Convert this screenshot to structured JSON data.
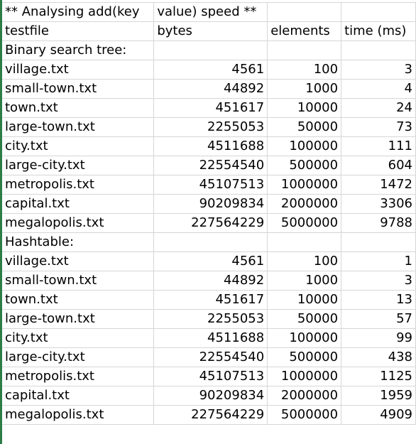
{
  "title_row": [
    "** Analysing add(key",
    "value) speed **",
    "",
    ""
  ],
  "header_row": [
    "testfile",
    "bytes",
    "elements",
    "time (ms)"
  ],
  "sections": [
    {
      "label": "Binary search tree:",
      "rows": [
        {
          "file": "village.txt",
          "bytes": "4561",
          "elements": "100",
          "time": "3"
        },
        {
          "file": "small-town.txt",
          "bytes": "44892",
          "elements": "1000",
          "time": "4"
        },
        {
          "file": "town.txt",
          "bytes": "451617",
          "elements": "10000",
          "time": "24"
        },
        {
          "file": "large-town.txt",
          "bytes": "2255053",
          "elements": "50000",
          "time": "73"
        },
        {
          "file": "city.txt",
          "bytes": "4511688",
          "elements": "100000",
          "time": "111"
        },
        {
          "file": "large-city.txt",
          "bytes": "22554540",
          "elements": "500000",
          "time": "604"
        },
        {
          "file": "metropolis.txt",
          "bytes": "45107513",
          "elements": "1000000",
          "time": "1472"
        },
        {
          "file": "capital.txt",
          "bytes": "90209834",
          "elements": "2000000",
          "time": "3306"
        },
        {
          "file": "megalopolis.txt",
          "bytes": "227564229",
          "elements": "5000000",
          "time": "9788"
        }
      ]
    },
    {
      "label": "Hashtable:",
      "rows": [
        {
          "file": "village.txt",
          "bytes": "4561",
          "elements": "100",
          "time": "1"
        },
        {
          "file": "small-town.txt",
          "bytes": "44892",
          "elements": "1000",
          "time": "3"
        },
        {
          "file": "town.txt",
          "bytes": "451617",
          "elements": "10000",
          "time": "13"
        },
        {
          "file": "large-town.txt",
          "bytes": "2255053",
          "elements": "50000",
          "time": "57"
        },
        {
          "file": "city.txt",
          "bytes": "4511688",
          "elements": "100000",
          "time": "99"
        },
        {
          "file": "large-city.txt",
          "bytes": "22554540",
          "elements": "500000",
          "time": "438"
        },
        {
          "file": "metropolis.txt",
          "bytes": "45107513",
          "elements": "1000000",
          "time": "1125"
        },
        {
          "file": "capital.txt",
          "bytes": "90209834",
          "elements": "2000000",
          "time": "1959"
        },
        {
          "file": "megalopolis.txt",
          "bytes": "227564229",
          "elements": "5000000",
          "time": "4909"
        }
      ]
    }
  ],
  "colors": {
    "grid": "#d6d6d6",
    "left_edge": "#2e7d46"
  }
}
